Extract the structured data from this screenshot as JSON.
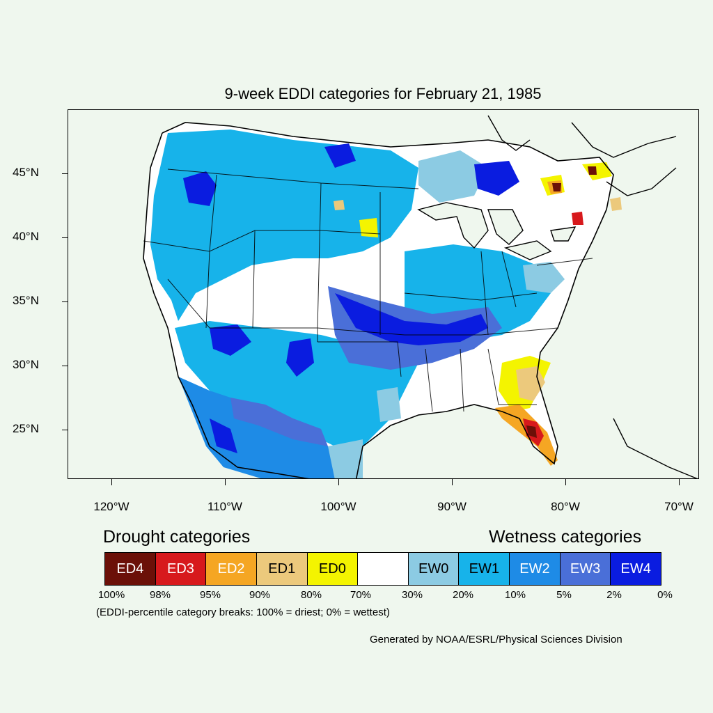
{
  "title": "9-week EDDI categories for February 21, 1985",
  "axes": {
    "y_labels": [
      "45°N",
      "40°N",
      "35°N",
      "30°N",
      "25°N"
    ],
    "x_labels": [
      "120°W",
      "110°W",
      "100°W",
      "90°W",
      "80°W",
      "70°W"
    ]
  },
  "legend": {
    "drought_heading": "Drought categories",
    "wetness_heading": "Wetness categories",
    "categories": [
      {
        "label": "ED4",
        "color": "#6b1008",
        "text_color": "#ffffff"
      },
      {
        "label": "ED3",
        "color": "#d7191c",
        "text_color": "#ffffff"
      },
      {
        "label": "ED2",
        "color": "#f5a623",
        "text_color": "#ffffff"
      },
      {
        "label": "ED1",
        "color": "#ecc97c",
        "text_color": "#000000"
      },
      {
        "label": "ED0",
        "color": "#f4f400",
        "text_color": "#000000"
      },
      {
        "label": "",
        "color": "#ffffff",
        "text_color": "#000000"
      },
      {
        "label": "EW0",
        "color": "#8ccbe3",
        "text_color": "#000000"
      },
      {
        "label": "EW1",
        "color": "#17b3ea",
        "text_color": "#000000"
      },
      {
        "label": "EW2",
        "color": "#1e8be6",
        "text_color": "#ffffff"
      },
      {
        "label": "EW3",
        "color": "#4a6fd8",
        "text_color": "#ffffff"
      },
      {
        "label": "EW4",
        "color": "#0a1ce0",
        "text_color": "#ffffff"
      }
    ],
    "percentiles": [
      "100%",
      "98%",
      "95%",
      "90%",
      "80%",
      "70%",
      "30%",
      "20%",
      "10%",
      "5%",
      "2%",
      "0%"
    ],
    "note": "(EDDI-percentile category breaks: 100% = driest; 0% = wettest)"
  },
  "credit": "Generated by NOAA/ESRL/Physical Sciences Division"
}
